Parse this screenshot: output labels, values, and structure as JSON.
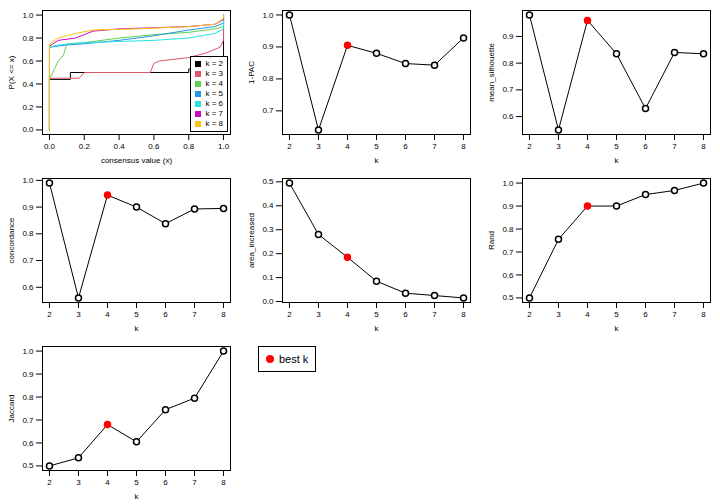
{
  "chart_data": [
    {
      "type": "ecdf",
      "xlabel": "consensus value (x)",
      "ylabel": "P(X <= x)",
      "xlim": [
        -0.04,
        1.04
      ],
      "ylim": [
        -0.04,
        1.04
      ],
      "xticks": [
        {
          "value": 0,
          "label": "0.0"
        },
        0.2,
        0.4,
        0.6,
        0.8,
        {
          "value": 1,
          "label": "1.0"
        }
      ],
      "yticks": [
        {
          "value": 0,
          "label": "0.0"
        },
        0.2,
        0.4,
        0.6,
        0.8,
        {
          "value": 1,
          "label": "1.0"
        }
      ],
      "legend": "bottom-right",
      "series": [
        {
          "name": "k = 2",
          "color": "#000000",
          "x": [
            0,
            0,
            0.12,
            0.12,
            0.8,
            0.8,
            0.98,
            0.98,
            1,
            1
          ],
          "values": [
            0,
            0.44,
            0.44,
            0.5,
            0.5,
            0.53,
            0.53,
            0.56,
            0.56,
            1
          ]
        },
        {
          "name": "k = 3",
          "color": "#DF536B",
          "x": [
            0,
            0,
            0.17,
            0.2,
            0.58,
            0.6,
            0.63,
            0.8,
            0.9,
            0.98,
            1,
            1
          ],
          "values": [
            0,
            0.45,
            0.45,
            0.5,
            0.5,
            0.58,
            0.6,
            0.63,
            0.67,
            0.72,
            0.78,
            1
          ]
        },
        {
          "name": "k = 4",
          "color": "#61D04F",
          "x": [
            0,
            0,
            0.02,
            0.05,
            0.08,
            0.1,
            0.2,
            0.4,
            0.6,
            0.8,
            0.95,
            1,
            1
          ],
          "values": [
            0,
            0.45,
            0.5,
            0.6,
            0.65,
            0.75,
            0.76,
            0.8,
            0.83,
            0.85,
            0.88,
            0.9,
            1
          ]
        },
        {
          "name": "k = 5",
          "color": "#2297E6",
          "x": [
            0,
            0,
            0.1,
            0.2,
            0.4,
            0.6,
            0.8,
            0.95,
            1,
            1
          ],
          "values": [
            0,
            0.72,
            0.74,
            0.75,
            0.78,
            0.82,
            0.87,
            0.9,
            0.93,
            1
          ]
        },
        {
          "name": "k = 6",
          "color": "#28E2E5",
          "x": [
            0,
            0,
            0.05,
            0.2,
            0.4,
            0.6,
            0.8,
            0.95,
            1,
            1
          ],
          "values": [
            0,
            0.72,
            0.74,
            0.76,
            0.77,
            0.78,
            0.8,
            0.84,
            0.88,
            1
          ]
        },
        {
          "name": "k = 7",
          "color": "#CD0BBC",
          "x": [
            0,
            0,
            0.05,
            0.15,
            0.25,
            0.4,
            0.6,
            0.8,
            0.95,
            1,
            1
          ],
          "values": [
            0,
            0.73,
            0.78,
            0.8,
            0.86,
            0.88,
            0.89,
            0.9,
            0.92,
            0.96,
            1
          ]
        },
        {
          "name": "k = 8",
          "color": "#F5C710",
          "x": [
            0,
            0,
            0.05,
            0.15,
            0.25,
            0.5,
            0.8,
            0.95,
            1,
            1
          ],
          "values": [
            0,
            0.75,
            0.8,
            0.84,
            0.87,
            0.88,
            0.9,
            0.92,
            0.97,
            1
          ]
        }
      ]
    },
    {
      "type": "line",
      "xlabel": "k",
      "ylabel": "1-PAC",
      "x": [
        2,
        3,
        4,
        5,
        6,
        7,
        8
      ],
      "values": [
        1.0,
        0.64,
        0.905,
        0.88,
        0.848,
        0.843,
        0.928
      ],
      "colors": [
        "white",
        "white",
        "red",
        "white",
        "white",
        "white",
        "white"
      ],
      "xlim": [
        1.76,
        8.24
      ],
      "xticks": [
        2,
        3,
        4,
        5,
        6,
        7,
        8
      ],
      "ylim": [
        0.626,
        1.014
      ],
      "yticks": [
        0.7,
        0.8,
        0.9,
        {
          "value": 1,
          "label": "1.0"
        }
      ]
    },
    {
      "type": "line",
      "xlabel": "k",
      "ylabel": "mean_silhouette",
      "x": [
        2,
        3,
        4,
        5,
        6,
        7,
        8
      ],
      "values": [
        0.98,
        0.55,
        0.96,
        0.835,
        0.63,
        0.84,
        0.835
      ],
      "colors": [
        "white",
        "white",
        "red",
        "white",
        "white",
        "white",
        "white"
      ],
      "xlim": [
        1.76,
        8.24
      ],
      "xticks": [
        2,
        3,
        4,
        5,
        6,
        7,
        8
      ],
      "ylim": [
        0.533,
        0.997
      ],
      "yticks": [
        0.6,
        0.7,
        0.8,
        0.9
      ]
    },
    {
      "type": "line",
      "xlabel": "k",
      "ylabel": "concordance",
      "x": [
        2,
        3,
        4,
        5,
        6,
        7,
        8
      ],
      "values": [
        0.99,
        0.56,
        0.945,
        0.9,
        0.838,
        0.893,
        0.895
      ],
      "colors": [
        "white",
        "white",
        "red",
        "white",
        "white",
        "white",
        "white"
      ],
      "xlim": [
        1.76,
        8.24
      ],
      "xticks": [
        2,
        3,
        4,
        5,
        6,
        7,
        8
      ],
      "ylim": [
        0.543,
        1.007
      ],
      "yticks": [
        0.6,
        0.7,
        0.8,
        0.9,
        {
          "value": 1,
          "label": "1.0"
        }
      ]
    },
    {
      "type": "line",
      "xlabel": "k",
      "ylabel": "area_increased",
      "x": [
        2,
        3,
        4,
        5,
        6,
        7,
        8
      ],
      "values": [
        0.495,
        0.28,
        0.185,
        0.085,
        0.035,
        0.025,
        0.015
      ],
      "colors": [
        "white",
        "white",
        "red",
        "white",
        "white",
        "white",
        "white"
      ],
      "xlim": [
        1.76,
        8.24
      ],
      "xticks": [
        2,
        3,
        4,
        5,
        6,
        7,
        8
      ],
      "ylim": [
        -0.004,
        0.514
      ],
      "yticks": [
        {
          "value": 0,
          "label": "0.0"
        },
        0.1,
        0.2,
        0.3,
        0.4,
        0.5
      ]
    },
    {
      "type": "line",
      "xlabel": "k",
      "ylabel": "Rand",
      "x": [
        2,
        3,
        4,
        5,
        6,
        7,
        8
      ],
      "values": [
        0.5,
        0.755,
        0.9,
        0.9,
        0.95,
        0.968,
        1.0
      ],
      "colors": [
        "white",
        "white",
        "red",
        "white",
        "white",
        "white",
        "white"
      ],
      "xlim": [
        1.76,
        8.24
      ],
      "xticks": [
        2,
        3,
        4,
        5,
        6,
        7,
        8
      ],
      "ylim": [
        0.48,
        1.02
      ],
      "yticks": [
        0.5,
        0.6,
        0.7,
        0.8,
        0.9,
        {
          "value": 1,
          "label": "1.0"
        }
      ]
    },
    {
      "type": "line",
      "xlabel": "k",
      "ylabel": "Jaccard",
      "x": [
        2,
        3,
        4,
        5,
        6,
        7,
        8
      ],
      "values": [
        0.5,
        0.535,
        0.68,
        0.605,
        0.745,
        0.795,
        1.0
      ],
      "colors": [
        "white",
        "white",
        "red",
        "white",
        "white",
        "white",
        "white"
      ],
      "xlim": [
        1.76,
        8.24
      ],
      "xticks": [
        2,
        3,
        4,
        5,
        6,
        7,
        8
      ],
      "ylim": [
        0.48,
        1.02
      ],
      "yticks": [
        0.5,
        0.6,
        0.7,
        0.8,
        0.9,
        {
          "value": 1,
          "label": "1.0"
        }
      ]
    },
    {
      "type": "legend",
      "series": [
        {
          "name": "best k",
          "color": "red",
          "marker": "circle"
        }
      ]
    }
  ]
}
